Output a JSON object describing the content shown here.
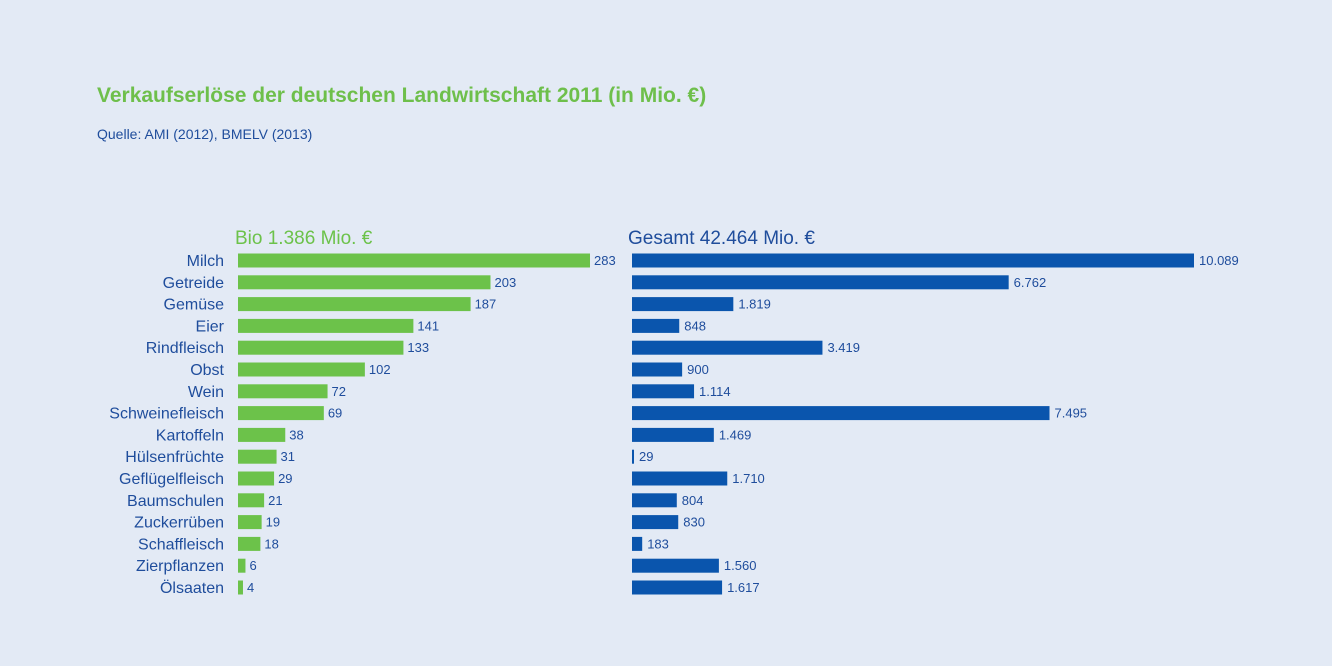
{
  "title": "Verkaufserlöse der deutschen Landwirtschaft 2011 (in Mio. €)",
  "source": "Quelle: AMI (2012), BMELV (2013)",
  "colors": {
    "bio": "#6cc24a",
    "gesamt": "#0a55ad",
    "title": "#6ebf4b",
    "text": "#1f4d9c",
    "background": "#e3eaf5"
  },
  "chart_data": {
    "type": "bar",
    "orientation": "horizontal",
    "grid": false,
    "categories": [
      "Milch",
      "Getreide",
      "Gemüse",
      "Eier",
      "Rindfleisch",
      "Obst",
      "Wein",
      "Schweinefleisch",
      "Kartoffeln",
      "Hülsenfrüchte",
      "Geflügelfleisch",
      "Baumschulen",
      "Zuckerrüben",
      "Schaffleisch",
      "Zierpflanzen",
      "Ölsaaten"
    ],
    "series": [
      {
        "name": "Bio 1.386 Mio. €",
        "values": [
          283,
          203,
          187,
          141,
          133,
          102,
          72,
          69,
          38,
          31,
          29,
          21,
          19,
          18,
          6,
          4
        ],
        "labels": [
          "283",
          "203",
          "187",
          "141",
          "133",
          "102",
          "72",
          "69",
          "38",
          "31",
          "29",
          "21",
          "19",
          "18",
          "6",
          "4"
        ]
      },
      {
        "name": "Gesamt 42.464 Mio. €",
        "values": [
          10089,
          6762,
          1819,
          848,
          3419,
          900,
          1114,
          7495,
          1469,
          29,
          1710,
          804,
          830,
          183,
          1560,
          1617
        ],
        "labels": [
          "10.089",
          "6.762",
          "1.819",
          "848",
          "3.419",
          "900",
          "1.114",
          "7.495",
          "1.469",
          "29",
          "1.710",
          "804",
          "830",
          "183",
          "1.560",
          "1.617"
        ]
      }
    ]
  }
}
